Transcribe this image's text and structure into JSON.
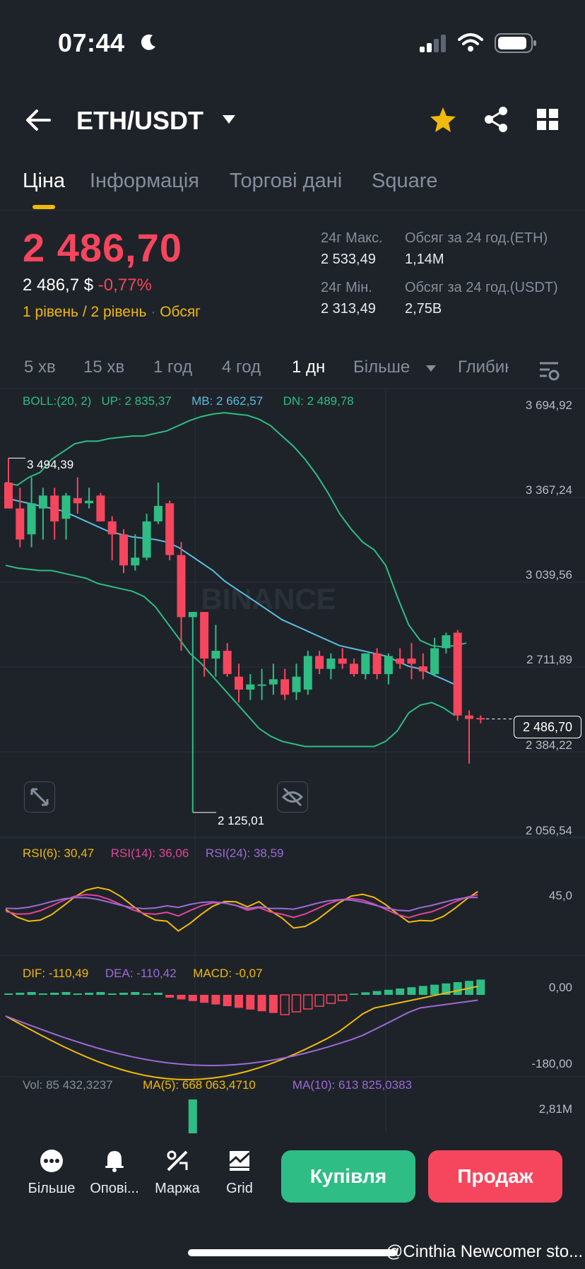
{
  "status": {
    "time": "07:44"
  },
  "header": {
    "pair": "ETH/USDT"
  },
  "tabs": [
    {
      "label": "Ціна"
    },
    {
      "label": "Інформація"
    },
    {
      "label": "Торгові дані"
    },
    {
      "label": "Square"
    }
  ],
  "ticker": {
    "price": "2 486,70",
    "price_usd": "2 486,7 $",
    "change": "-0,77%",
    "levels_label": "1 рівень / 2 рівень",
    "volume_label": "Обсяг",
    "high_label": "24г Макс.",
    "high_value": "2 533,49",
    "low_label": "24г Мін.",
    "low_value": "2 313,49",
    "vol_eth_label": "Обсяг за 24 год.(ETH)",
    "vol_eth_value": "1,14M",
    "vol_usdt_label": "Обсяг за 24 год.(USDT)",
    "vol_usdt_value": "2,75B"
  },
  "intervals": [
    {
      "label": "5 хв"
    },
    {
      "label": "15 хв"
    },
    {
      "label": "1 год"
    },
    {
      "label": "4 год"
    },
    {
      "label": "1 дн"
    },
    {
      "label": "Більше"
    },
    {
      "label": "Глибина"
    }
  ],
  "boll": {
    "label": "BOLL:(20, 2)",
    "up": "UP: 2 835,37",
    "mb": "MB: 2 662,57",
    "dn": "DN: 2 489,78"
  },
  "price_axis": [
    "3 694,92",
    "3 367,24",
    "3 039,56",
    "2 711,89",
    "2 384,22",
    "2 056,54"
  ],
  "current_price_tag": "2 486,70",
  "high_marker": "3 494,39",
  "low_marker": "2 125,01",
  "watermark_brand": "BINANCE",
  "rsi": {
    "rsi6": "RSI(6): 30,47",
    "rsi14": "RSI(14): 36,06",
    "rsi24": "RSI(24): 38,59",
    "axis": "45,0"
  },
  "macd": {
    "dif": "DIF: -110,49",
    "dea": "DEA: -110,42",
    "macd": "MACD: -0,07",
    "axis_top": "0,00",
    "axis_bottom": "-180,00"
  },
  "volume": {
    "vol": "Vol: 85 432,3237",
    "ma5": "MA(5): 668 063,4710",
    "ma10": "MA(10): 613 825,0383",
    "axis": "2,81M"
  },
  "bottom_nav": [
    {
      "label": "Більше",
      "icon": "more-icon"
    },
    {
      "label": "Опові...",
      "icon": "bell-icon"
    },
    {
      "label": "Маржа",
      "icon": "margin-icon"
    },
    {
      "label": "Grid",
      "icon": "grid-bot-icon"
    }
  ],
  "buy_label": "Купівля",
  "sell_label": "Продаж",
  "overlay_text": "@Cinthia Newcomer sto...",
  "colors": {
    "up": "#2ebd85",
    "down": "#f6465d",
    "accent": "#f0b90b",
    "bg": "#1e2329"
  },
  "chart_data": {
    "type": "candlestick",
    "ylim": [
      2056.54,
      3694.92
    ],
    "candles": [
      {
        "o": 3400,
        "h": 3494.39,
        "l": 3300,
        "c": 3300
      },
      {
        "o": 3300,
        "h": 3380,
        "l": 3150,
        "c": 3180
      },
      {
        "o": 3200,
        "h": 3420,
        "l": 3150,
        "c": 3320
      },
      {
        "o": 3300,
        "h": 3380,
        "l": 3180,
        "c": 3350
      },
      {
        "o": 3350,
        "h": 3380,
        "l": 3180,
        "c": 3250
      },
      {
        "o": 3260,
        "h": 3360,
        "l": 3180,
        "c": 3350
      },
      {
        "o": 3340,
        "h": 3420,
        "l": 3280,
        "c": 3320
      },
      {
        "o": 3320,
        "h": 3380,
        "l": 3300,
        "c": 3330
      },
      {
        "o": 3350,
        "h": 3360,
        "l": 3250,
        "c": 3250
      },
      {
        "o": 3250,
        "h": 3270,
        "l": 3100,
        "c": 3200
      },
      {
        "o": 3200,
        "h": 3220,
        "l": 3050,
        "c": 3080
      },
      {
        "o": 3080,
        "h": 3200,
        "l": 3060,
        "c": 3110
      },
      {
        "o": 3110,
        "h": 3280,
        "l": 3100,
        "c": 3250
      },
      {
        "o": 3250,
        "h": 3400,
        "l": 3240,
        "c": 3310
      },
      {
        "o": 3320,
        "h": 3330,
        "l": 3100,
        "c": 3120
      },
      {
        "o": 3120,
        "h": 3170,
        "l": 2750,
        "c": 2880
      },
      {
        "o": 2880,
        "h": 2900,
        "l": 2125.01,
        "c": 2900
      },
      {
        "o": 2900,
        "h": 2900,
        "l": 2650,
        "c": 2720
      },
      {
        "o": 2720,
        "h": 2850,
        "l": 2650,
        "c": 2750
      },
      {
        "o": 2750,
        "h": 2780,
        "l": 2650,
        "c": 2660
      },
      {
        "o": 2650,
        "h": 2700,
        "l": 2550,
        "c": 2600
      },
      {
        "o": 2600,
        "h": 2660,
        "l": 2560,
        "c": 2620
      },
      {
        "o": 2620,
        "h": 2680,
        "l": 2560,
        "c": 2620
      },
      {
        "o": 2620,
        "h": 2700,
        "l": 2580,
        "c": 2640
      },
      {
        "o": 2640,
        "h": 2680,
        "l": 2560,
        "c": 2580
      },
      {
        "o": 2590,
        "h": 2700,
        "l": 2560,
        "c": 2650
      },
      {
        "o": 2600,
        "h": 2750,
        "l": 2580,
        "c": 2730
      },
      {
        "o": 2730,
        "h": 2750,
        "l": 2660,
        "c": 2680
      },
      {
        "o": 2680,
        "h": 2740,
        "l": 2640,
        "c": 2720
      },
      {
        "o": 2720,
        "h": 2760,
        "l": 2680,
        "c": 2700
      },
      {
        "o": 2700,
        "h": 2720,
        "l": 2650,
        "c": 2660
      },
      {
        "o": 2660,
        "h": 2740,
        "l": 2640,
        "c": 2740
      },
      {
        "o": 2740,
        "h": 2760,
        "l": 2640,
        "c": 2660
      },
      {
        "o": 2660,
        "h": 2740,
        "l": 2620,
        "c": 2730
      },
      {
        "o": 2720,
        "h": 2760,
        "l": 2680,
        "c": 2700
      },
      {
        "o": 2720,
        "h": 2780,
        "l": 2640,
        "c": 2700
      },
      {
        "o": 2690,
        "h": 2740,
        "l": 2640,
        "c": 2670
      },
      {
        "o": 2660,
        "h": 2800,
        "l": 2650,
        "c": 2760
      },
      {
        "o": 2760,
        "h": 2820,
        "l": 2740,
        "c": 2810
      },
      {
        "o": 2820,
        "h": 2830,
        "l": 2480,
        "c": 2500
      },
      {
        "o": 2500,
        "h": 2520,
        "l": 2313.49,
        "c": 2486.7
      },
      {
        "o": 2490,
        "h": 2500,
        "l": 2470,
        "c": 2486.7
      }
    ],
    "boll_up": [
      3400,
      3390,
      3420,
      3440,
      3490,
      3520,
      3550,
      3560,
      3560,
      3570,
      3575,
      3580,
      3580,
      3590,
      3600,
      3620,
      3640,
      3655,
      3665,
      3670,
      3665,
      3660,
      3645,
      3620,
      3580,
      3540,
      3490,
      3430,
      3360,
      3280,
      3220,
      3170,
      3140,
      3080,
      2960,
      2850,
      2790,
      2770,
      2765,
      2770,
      2780
    ],
    "mb": [
      3340,
      3330,
      3320,
      3310,
      3300,
      3290,
      3270,
      3250,
      3230,
      3210,
      3200,
      3190,
      3185,
      3180,
      3170,
      3150,
      3120,
      3090,
      3060,
      3020,
      2990,
      2960,
      2930,
      2900,
      2870,
      2850,
      2830,
      2810,
      2790,
      2770,
      2760,
      2750,
      2740,
      2730,
      2710,
      2690,
      2680,
      2660,
      2640,
      2620
    ],
    "boll_dn": [
      3080,
      3070,
      3065,
      3060,
      3060,
      3050,
      3040,
      3030,
      3010,
      3000,
      2990,
      2980,
      2960,
      2920,
      2860,
      2800,
      2740,
      2700,
      2650,
      2600,
      2550,
      2500,
      2450,
      2420,
      2400,
      2390,
      2380,
      2380,
      2380,
      2380,
      2380,
      2380,
      2380,
      2400,
      2440,
      2510,
      2540,
      2550,
      2530,
      2500
    ]
  }
}
